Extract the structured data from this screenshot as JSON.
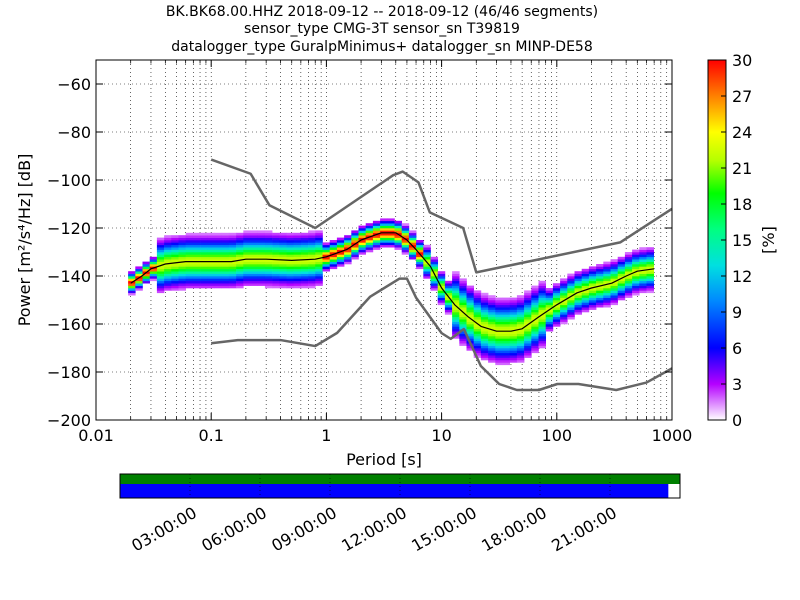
{
  "title_lines": [
    "BK.BK68.00.HHZ   2018-09-12 -- 2018-09-12  (46/46 segments)",
    "sensor_type CMG-3T sensor_sn T39819",
    "datalogger_type GuralpMinimus+ datalogger_sn MINP-DE58"
  ],
  "colors": {
    "axis": "#000000",
    "noise_model": "#666666",
    "mean_curve": "#000000",
    "coverage_top": "#008000",
    "coverage_bottom": "#0000ff"
  },
  "chart_data": [
    {
      "type": "heatmap",
      "title": "BK.BK68.00.HHZ   2018-09-12 -- 2018-09-12  (46/46 segments)",
      "xlabel": "Period [s]",
      "ylabel": "Power [m²/s⁴/Hz] [dB]",
      "xscale": "log",
      "xlim": [
        0.01,
        1000
      ],
      "ylim": [
        -200,
        -50
      ],
      "x_ticks": [
        0.01,
        0.1,
        1,
        10,
        100,
        1000
      ],
      "x_tick_labels": [
        "0.01",
        "0.1",
        "1",
        "10",
        "100",
        "1000"
      ],
      "y_ticks": [
        -200,
        -180,
        -160,
        -140,
        -120,
        -100,
        -80,
        -60
      ],
      "y_tick_labels": [
        "−200",
        "−180",
        "−160",
        "−140",
        "−120",
        "−100",
        "−80",
        "−60"
      ],
      "grid": true,
      "colorbar": {
        "label": "[%]",
        "range": [
          0,
          30
        ],
        "ticks": [
          0,
          3,
          6,
          9,
          12,
          15,
          18,
          21,
          24,
          27,
          30
        ],
        "tick_labels": [
          "0",
          "3",
          "6",
          "9",
          "12",
          "15",
          "18",
          "21",
          "24",
          "27",
          "30"
        ]
      },
      "series": [
        {
          "name": "mode_psd",
          "x": [
            0.02,
            0.025,
            0.03,
            0.04,
            0.06,
            0.1,
            0.15,
            0.2,
            0.3,
            0.5,
            0.8,
            1.0,
            1.5,
            2.0,
            3.0,
            4.0,
            5.0,
            6.0,
            8.0,
            10,
            13,
            17,
            22,
            30,
            40,
            50,
            70,
            100,
            150,
            200,
            300,
            400,
            500,
            700
          ],
          "y": [
            -143,
            -140,
            -137,
            -135,
            -134,
            -134,
            -134,
            -133,
            -133,
            -133.5,
            -133,
            -132,
            -129,
            -125,
            -122,
            -122,
            -125,
            -129,
            -136,
            -145,
            -152,
            -157,
            -161,
            -163,
            -163,
            -162,
            -157,
            -152,
            -147,
            -145,
            -143,
            -140,
            -138,
            -137
          ]
        },
        {
          "name": "high_noise_model",
          "x": [
            0.1,
            0.22,
            0.32,
            0.8,
            3.8,
            4.6,
            6.3,
            7.9,
            15.4,
            20,
            354.8,
            1000
          ],
          "y": [
            -91.5,
            -97.4,
            -110.5,
            -120,
            -98,
            -96.5,
            -101,
            -113.5,
            -120,
            -138.5,
            -126,
            -112
          ]
        },
        {
          "name": "low_noise_model",
          "x": [
            0.1,
            0.17,
            0.4,
            0.8,
            1.24,
            2.4,
            4.3,
            5.0,
            6.0,
            10,
            12,
            15.6,
            21.9,
            31.6,
            45,
            70,
            101,
            154,
            328,
            600,
            1000
          ],
          "y": [
            -168,
            -166.7,
            -166.7,
            -169.2,
            -163.7,
            -148.6,
            -141.1,
            -141.1,
            -149,
            -163.8,
            -166.2,
            -162.1,
            -177.5,
            -185,
            -187.5,
            -187.5,
            -185,
            -185,
            -187.5,
            -184.4,
            -178.5
          ]
        }
      ]
    },
    {
      "type": "bar",
      "name": "data_coverage",
      "x_tick_labels": [
        "03:00:00",
        "06:00:00",
        "09:00:00",
        "12:00:00",
        "15:00:00",
        "18:00:00",
        "21:00:00"
      ],
      "xlim_hours": [
        0,
        24
      ],
      "series": [
        {
          "name": "data_available",
          "start_hour": 0,
          "end_hour": 24
        },
        {
          "name": "psd_segments",
          "start_hour": 0,
          "end_hour": 23.5
        }
      ]
    }
  ]
}
